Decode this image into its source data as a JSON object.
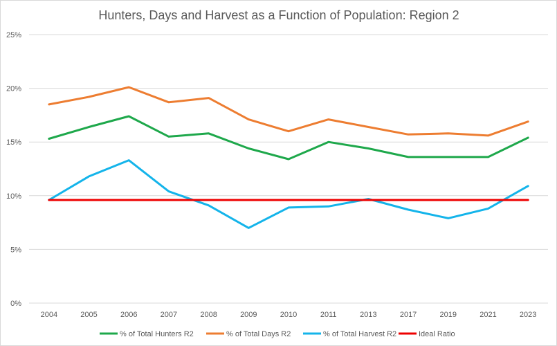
{
  "chart_data": {
    "type": "line",
    "title": "Hunters, Days and Harvest as a Function of Population: Region 2",
    "xlabel": "",
    "ylabel": "",
    "ylim": [
      0,
      25
    ],
    "y_tick_step": 5,
    "y_tick_suffix": "%",
    "grid": true,
    "legend_position": "bottom",
    "categories": [
      "2004",
      "2005",
      "2006",
      "2007",
      "2008",
      "2009",
      "2010",
      "2011",
      "2013",
      "2017",
      "2019",
      "2021",
      "2023"
    ],
    "series": [
      {
        "name": "% of Total Hunters R2",
        "color": "#1ea84b",
        "values": [
          15.3,
          16.4,
          17.4,
          15.5,
          15.8,
          14.4,
          13.4,
          15.0,
          14.4,
          13.6,
          13.6,
          13.6,
          15.4
        ]
      },
      {
        "name": "% of Total Days R2",
        "color": "#ed7d31",
        "values": [
          18.5,
          19.2,
          20.1,
          18.7,
          19.1,
          17.1,
          16.0,
          17.1,
          16.4,
          15.7,
          15.8,
          15.6,
          16.9
        ]
      },
      {
        "name": "% of Total Harvest R2",
        "color": "#14b4ea",
        "values": [
          9.6,
          11.8,
          13.3,
          10.4,
          9.1,
          7.0,
          8.9,
          9.0,
          9.7,
          8.7,
          7.9,
          8.8,
          10.9
        ]
      },
      {
        "name": "Ideal Ratio",
        "color": "#ee0000",
        "values": [
          9.6,
          9.6,
          9.6,
          9.6,
          9.6,
          9.6,
          9.6,
          9.6,
          9.6,
          9.6,
          9.6,
          9.6,
          9.6
        ]
      }
    ]
  }
}
